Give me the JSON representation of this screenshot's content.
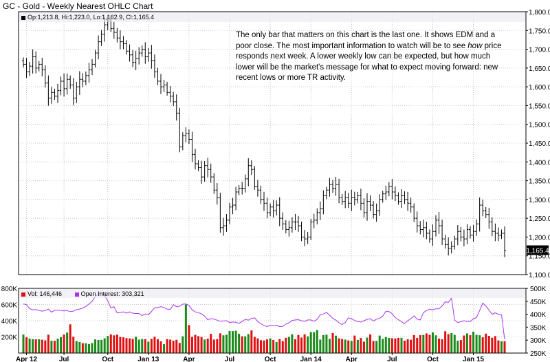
{
  "chart_title": "GC - Gold - Weekly Nearest OHLC Chart",
  "price_legend": "Op:1,213.8, Hi:1,223.0, Lo:1,162.9, Cl:1,165.4",
  "annotation_parts": [
    "The only bar that matters on this chart is the last one.  It shows EDM and a poor close.  The most important information to watch will be to see ",
    "how",
    " price responds next week.  A lower weekly low can be expected, but how much lower will be the market's message for what to expect moving forward: new recent lows or more TR activity."
  ],
  "last_price_tag": "1,165.4",
  "volume_legend": "Vol: 146,446",
  "oi_legend": "Open Interest: 303,321",
  "colors": {
    "up": "#1a8a1a",
    "down": "#e01010",
    "oi": "#aa33ee",
    "grid": "#c8c8c8",
    "legend_price": "#000000",
    "legend_vol": "#e01010",
    "legend_oi": "#aa33ee"
  },
  "chart_data": [
    {
      "type": "ohlc",
      "title": "GC - Gold - Weekly Nearest OHLC Chart",
      "ylim": [
        1100,
        1800
      ],
      "y_ticks": [
        "1,100.0",
        "1,150.0",
        "1,200.0",
        "1,250.0",
        "1,300.0",
        "1,350.0",
        "1,400.0",
        "1,450.0",
        "1,500.0",
        "1,550.0",
        "1,600.0",
        "1,650.0",
        "1,700.0",
        "1,750.0",
        "1,800.0"
      ],
      "y_tick_values": [
        1100,
        1150,
        1200,
        1250,
        1300,
        1350,
        1400,
        1450,
        1500,
        1550,
        1600,
        1650,
        1700,
        1750,
        1800
      ],
      "x_ticks": [
        "Apr 12",
        "Jul",
        "Oct",
        "Jan 13",
        "Apr",
        "Jul",
        "Oct",
        "Jan 14",
        "Apr",
        "Jul",
        "Oct",
        "Jan 15"
      ],
      "x_tick_weeks": [
        1,
        13,
        27,
        40,
        53,
        66,
        79,
        92,
        105,
        118,
        131,
        144
      ],
      "closes": [
        1660,
        1640,
        1655,
        1680,
        1650,
        1660,
        1645,
        1610,
        1570,
        1585,
        1575,
        1590,
        1615,
        1595,
        1620,
        1605,
        1570,
        1600,
        1620,
        1615,
        1630,
        1645,
        1660,
        1690,
        1720,
        1740,
        1765,
        1775,
        1755,
        1745,
        1730,
        1720,
        1715,
        1695,
        1685,
        1665,
        1675,
        1690,
        1700,
        1680,
        1690,
        1670,
        1640,
        1615,
        1600,
        1605,
        1585,
        1575,
        1560,
        1530,
        1440,
        1470,
        1475,
        1460,
        1420,
        1395,
        1385,
        1360,
        1390,
        1380,
        1360,
        1325,
        1305,
        1225,
        1230,
        1245,
        1280,
        1285,
        1320,
        1330,
        1330,
        1355,
        1390,
        1380,
        1335,
        1325,
        1300,
        1290,
        1265,
        1280,
        1270,
        1285,
        1250,
        1235,
        1220,
        1225,
        1240,
        1240,
        1230,
        1200,
        1195,
        1200,
        1240,
        1245,
        1265,
        1275,
        1310,
        1325,
        1340,
        1330,
        1340,
        1305,
        1295,
        1305,
        1290,
        1305,
        1300,
        1310,
        1290,
        1265,
        1295,
        1285,
        1260,
        1270,
        1300,
        1315,
        1320,
        1335,
        1320,
        1310,
        1295,
        1310,
        1300,
        1290,
        1280,
        1250,
        1230,
        1220,
        1225,
        1210,
        1195,
        1215,
        1245,
        1230,
        1195,
        1180,
        1170,
        1175,
        1195,
        1215,
        1200,
        1195,
        1220,
        1205,
        1215,
        1235,
        1285,
        1270,
        1260,
        1240,
        1215,
        1210,
        1205,
        1210,
        1165
      ]
    },
    {
      "type": "bar+line",
      "series": [
        {
          "name": "Vol",
          "ylim": [
            0,
            800000
          ],
          "y_ticks": [
            "200K",
            "400K",
            "600K",
            "800K"
          ],
          "y_tick_values": [
            200000,
            400000,
            600000,
            800000
          ],
          "values": [
            229000,
            195000,
            180000,
            172000,
            170000,
            170000,
            165000,
            157000,
            227000,
            153000,
            152000,
            178000,
            196000,
            228000,
            254000,
            355000,
            201000,
            148000,
            137000,
            122000,
            121000,
            112000,
            124000,
            169000,
            162000,
            163000,
            183000,
            211000,
            231000,
            219000,
            228000,
            199000,
            195000,
            185000,
            182000,
            176000,
            201000,
            166000,
            173000,
            172000,
            141000,
            176000,
            202000,
            171000,
            144000,
            110000,
            172000,
            166000,
            153000,
            164000,
            125000,
            207000,
            600000,
            346000,
            199000,
            225000,
            209000,
            198000,
            168000,
            179000,
            237000,
            167000,
            173000,
            244000,
            219000,
            227000,
            273000,
            271000,
            276000,
            239000,
            207000,
            206000,
            235000,
            280000,
            200000,
            182000,
            159000,
            155000,
            169000,
            181000,
            162000,
            136000,
            173000,
            148000,
            189000,
            200000,
            232000,
            171000,
            223000,
            192000,
            232000,
            207000,
            260000,
            259000,
            284000,
            167000,
            222000,
            228000,
            176000,
            247000,
            215000,
            182000,
            174000,
            167000,
            156000,
            150000,
            216000,
            163000,
            186000,
            141000,
            191000,
            231000,
            150000,
            150000,
            216000,
            176000,
            197000,
            187000,
            183000,
            180000,
            188000,
            188000,
            153000,
            170000,
            165000,
            222000,
            187000,
            221000,
            224000,
            243000,
            225000,
            255000,
            219000,
            179000,
            171000,
            270000,
            234000,
            247000,
            225000,
            153000,
            161000,
            217000,
            243000,
            221000,
            265000,
            225000,
            220000,
            195000,
            240000,
            213000,
            189000,
            210000,
            157000,
            146000,
            146446
          ],
          "up": [
            1,
            0,
            1,
            1,
            0,
            1,
            0,
            0,
            0,
            1,
            0,
            1,
            1,
            0,
            1,
            0,
            0,
            1,
            1,
            0,
            1,
            1,
            1,
            1,
            1,
            1,
            1,
            1,
            0,
            0,
            0,
            0,
            0,
            0,
            0,
            0,
            1,
            1,
            1,
            0,
            1,
            0,
            0,
            0,
            0,
            1,
            0,
            0,
            0,
            0,
            0,
            1,
            1,
            0,
            0,
            0,
            0,
            0,
            1,
            0,
            0,
            0,
            0,
            0,
            1,
            1,
            1,
            1,
            1,
            1,
            0,
            1,
            1,
            0,
            0,
            0,
            0,
            0,
            0,
            1,
            0,
            1,
            0,
            0,
            0,
            1,
            1,
            0,
            0,
            0,
            0,
            1,
            1,
            1,
            1,
            1,
            1,
            1,
            1,
            0,
            1,
            0,
            0,
            1,
            0,
            1,
            0,
            1,
            0,
            0,
            1,
            0,
            0,
            1,
            1,
            1,
            1,
            1,
            0,
            0,
            0,
            1,
            0,
            0,
            0,
            0,
            0,
            0,
            1,
            0,
            0,
            1,
            1,
            0,
            0,
            0,
            0,
            1,
            1,
            1,
            0,
            0,
            1,
            0,
            1,
            1,
            1,
            0,
            0,
            0,
            0,
            0,
            0,
            1,
            0
          ]
        },
        {
          "name": "Open Interest",
          "ylim": [
            250000,
            500000
          ],
          "y_ticks": [
            "250K",
            "300K",
            "350K",
            "400K",
            "450K",
            "500K"
          ],
          "y_tick_values": [
            250000,
            300000,
            350000,
            400000,
            450000,
            500000
          ],
          "values": [
            440000,
            437000,
            422000,
            417000,
            418000,
            415000,
            412000,
            414000,
            420000,
            408000,
            415000,
            416000,
            414000,
            413000,
            414000,
            410000,
            412000,
            418000,
            420000,
            424000,
            430000,
            440000,
            450000,
            468000,
            478000,
            482000,
            471000,
            452000,
            424000,
            429000,
            405000,
            407000,
            409000,
            404000,
            409000,
            404000,
            403000,
            403000,
            395000,
            401000,
            398000,
            411000,
            425000,
            426000,
            429000,
            426000,
            420000,
            419000,
            437000,
            429000,
            431000,
            439000,
            440000,
            434000,
            417000,
            409000,
            406000,
            401000,
            393000,
            379000,
            383000,
            381000,
            377000,
            373000,
            374000,
            375000,
            368000,
            370000,
            369000,
            365000,
            372000,
            380000,
            377000,
            384000,
            386000,
            372000,
            363000,
            357000,
            352000,
            358000,
            355000,
            358000,
            352000,
            353000,
            362000,
            367000,
            376000,
            378000,
            379000,
            375000,
            372000,
            378000,
            378000,
            373000,
            380000,
            398000,
            401000,
            407000,
            396000,
            384000,
            377000,
            367000,
            360000,
            368000,
            386000,
            383000,
            376000,
            372000,
            370000,
            375000,
            380000,
            383000,
            374000,
            381000,
            384000,
            393000,
            411000,
            410000,
            402000,
            387000,
            379000,
            371000,
            364000,
            375000,
            383000,
            394000,
            381000,
            378000,
            406000,
            414000,
            420000,
            417000,
            421000,
            421000,
            432000,
            448000,
            446000,
            462000,
            377000,
            368000,
            371000,
            375000,
            372000,
            372000,
            383000,
            387000,
            414000,
            443000,
            432000,
            416000,
            400000,
            405000,
            400000,
            398000,
            303321
          ]
        }
      ]
    }
  ]
}
